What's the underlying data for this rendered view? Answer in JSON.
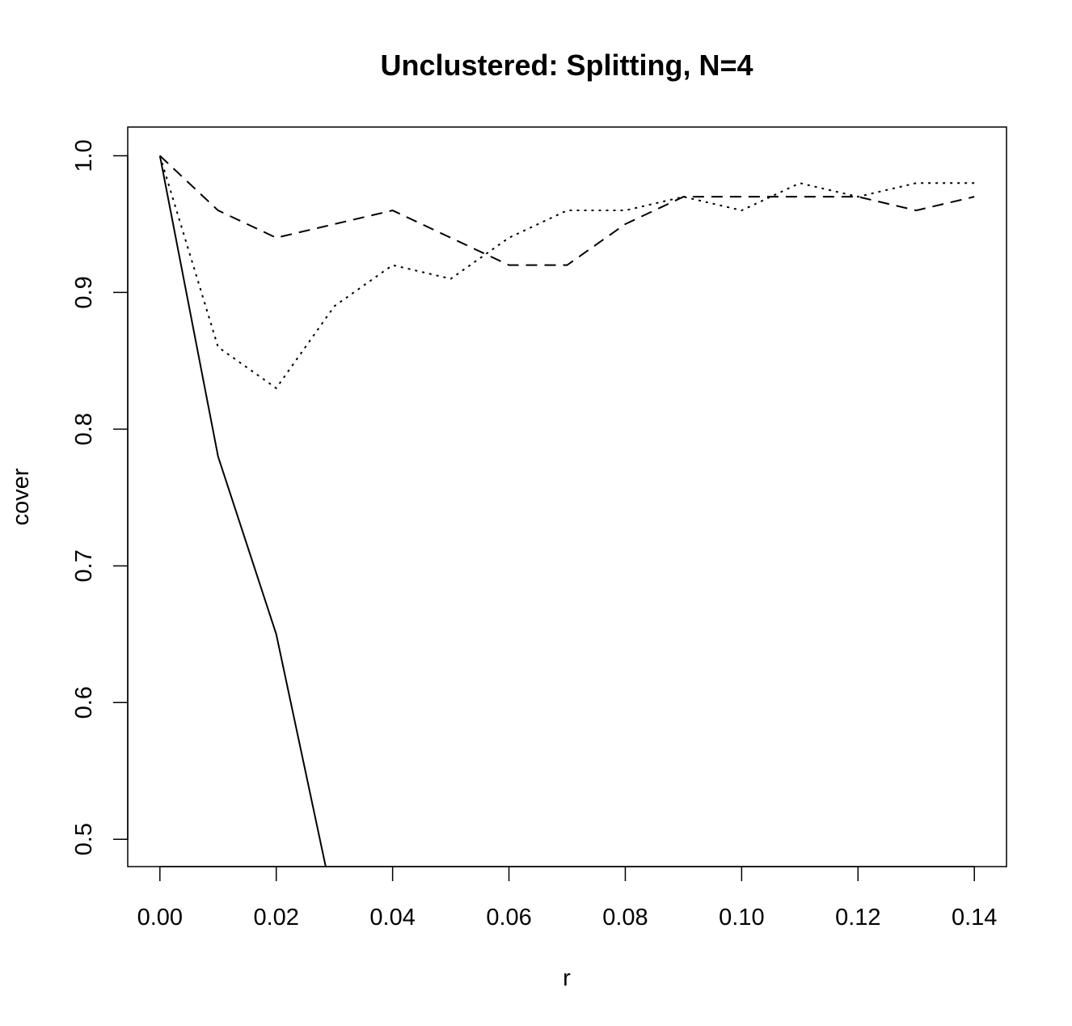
{
  "chart_data": {
    "type": "line",
    "title": "Unclustered: Splitting, N=4",
    "xlabel": "r",
    "ylabel": "cover",
    "xlim": [
      -0.00553,
      0.14553
    ],
    "ylim": [
      0.48,
      1.021
    ],
    "x_ticks": [
      0.0,
      0.02,
      0.04,
      0.06,
      0.08,
      0.1,
      0.12,
      0.14
    ],
    "x_tick_labels": [
      "0.00",
      "0.02",
      "0.04",
      "0.06",
      "0.08",
      "0.10",
      "0.12",
      "0.14"
    ],
    "y_ticks": [
      0.5,
      0.6,
      0.7,
      0.8,
      0.9,
      1.0
    ],
    "y_tick_labels": [
      "0.5",
      "0.6",
      "0.7",
      "0.8",
      "0.9",
      "1.0"
    ],
    "grid": false,
    "legend": "none",
    "x": [
      0.0,
      0.01,
      0.02,
      0.03,
      0.04,
      0.05,
      0.06,
      0.07,
      0.08,
      0.09,
      0.1,
      0.11,
      0.12,
      0.13,
      0.14
    ],
    "series": [
      {
        "line_style": "solid",
        "color": "#000000",
        "values": [
          1.0,
          0.78,
          0.65,
          0.45,
          null,
          null,
          null,
          null,
          null,
          null,
          null,
          null,
          null,
          null,
          null
        ]
      },
      {
        "line_style": "dotted",
        "color": "#000000",
        "values": [
          1.0,
          0.86,
          0.83,
          0.89,
          0.92,
          0.91,
          0.94,
          0.96,
          0.96,
          0.97,
          0.96,
          0.98,
          0.97,
          0.98,
          0.98
        ]
      },
      {
        "line_style": "dashed",
        "color": "#000000",
        "values": [
          1.0,
          0.96,
          0.94,
          0.95,
          0.96,
          0.94,
          0.92,
          0.92,
          0.95,
          0.97,
          0.97,
          0.97,
          0.97,
          0.96,
          0.97
        ]
      }
    ]
  }
}
